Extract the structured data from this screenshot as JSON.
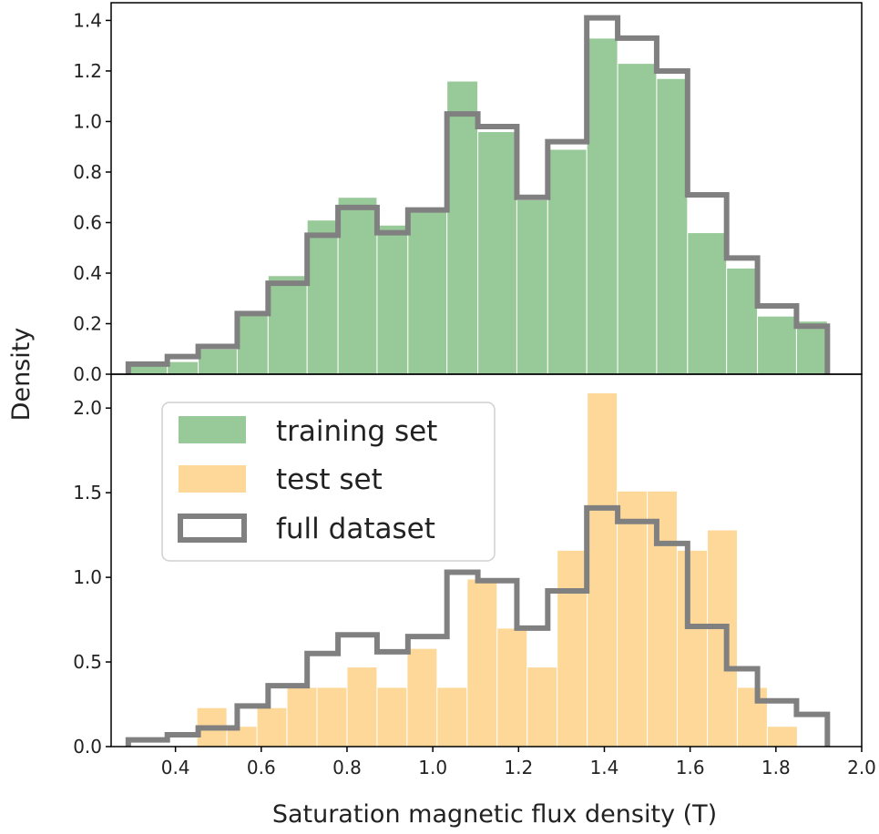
{
  "chart_data": [
    {
      "type": "bar",
      "panel": "top",
      "xlabel": "",
      "ylabel": "Density",
      "xlim": [
        0.25,
        2.0
      ],
      "ylim": [
        0,
        1.47
      ],
      "yticks": [
        0.0,
        0.2,
        0.4,
        0.6,
        0.8,
        1.0,
        1.2,
        1.4
      ],
      "ytick_labels": [
        "0.0",
        "0.2",
        "0.4",
        "0.6",
        "0.8",
        "1.0",
        "1.2",
        "1.4"
      ],
      "bin_edges": [
        0.29,
        0.381,
        0.453,
        0.544,
        0.616,
        0.707,
        0.779,
        0.87,
        0.942,
        1.033,
        1.105,
        1.196,
        1.268,
        1.359,
        1.431,
        1.522,
        1.594,
        1.685,
        1.757,
        1.848,
        1.92
      ],
      "series": [
        {
          "name": "training set",
          "color": "#98c998",
          "values": [
            0.04,
            0.05,
            0.1,
            0.24,
            0.39,
            0.61,
            0.7,
            0.59,
            0.66,
            1.16,
            0.96,
            0.69,
            0.89,
            1.33,
            1.23,
            1.17,
            0.56,
            0.42,
            0.23,
            0.21
          ]
        },
        {
          "name": "full dataset",
          "style": "step",
          "color": "#808080",
          "values": [
            0.04,
            0.07,
            0.11,
            0.24,
            0.36,
            0.55,
            0.66,
            0.56,
            0.65,
            1.03,
            0.98,
            0.7,
            0.92,
            1.41,
            1.33,
            1.2,
            0.71,
            0.46,
            0.27,
            0.19
          ]
        }
      ]
    },
    {
      "type": "bar",
      "panel": "bottom",
      "xlabel": "Saturation magnetic flux density (T)",
      "ylabel": "Density",
      "xlim": [
        0.25,
        2.0
      ],
      "ylim": [
        0,
        2.2
      ],
      "xticks": [
        0.4,
        0.6,
        0.8,
        1.0,
        1.2,
        1.4,
        1.6,
        1.8,
        2.0
      ],
      "xtick_labels": [
        "0.4",
        "0.6",
        "0.8",
        "1.0",
        "1.2",
        "1.4",
        "1.6",
        "1.8",
        "2.0"
      ],
      "yticks": [
        0.0,
        0.5,
        1.0,
        1.5,
        2.0
      ],
      "ytick_labels": [
        "0.0",
        "0.5",
        "1.0",
        "1.5",
        "2.0"
      ],
      "bin_edges": [
        0.29,
        0.381,
        0.453,
        0.544,
        0.616,
        0.707,
        0.779,
        0.87,
        0.942,
        1.033,
        1.105,
        1.196,
        1.268,
        1.359,
        1.431,
        1.522,
        1.594,
        1.685,
        1.757,
        1.848,
        1.92
      ],
      "test_bars": [
        {
          "x0": 0.45,
          "x1": 0.52,
          "value": 0.23
        },
        {
          "x0": 0.52,
          "x1": 0.59,
          "value": 0.12
        },
        {
          "x0": 0.59,
          "x1": 0.66,
          "value": 0.23
        },
        {
          "x0": 0.66,
          "x1": 0.73,
          "value": 0.35
        },
        {
          "x0": 0.73,
          "x1": 0.8,
          "value": 0.35
        },
        {
          "x0": 0.8,
          "x1": 0.87,
          "value": 0.47
        },
        {
          "x0": 0.87,
          "x1": 0.94,
          "value": 0.35
        },
        {
          "x0": 0.94,
          "x1": 1.01,
          "value": 0.58
        },
        {
          "x0": 1.01,
          "x1": 1.08,
          "value": 0.35
        },
        {
          "x0": 1.08,
          "x1": 1.15,
          "value": 0.99
        },
        {
          "x0": 1.15,
          "x1": 1.22,
          "value": 0.7
        },
        {
          "x0": 1.22,
          "x1": 1.29,
          "value": 0.47
        },
        {
          "x0": 1.29,
          "x1": 1.36,
          "value": 1.16
        },
        {
          "x0": 1.36,
          "x1": 1.43,
          "value": 2.09
        },
        {
          "x0": 1.43,
          "x1": 1.5,
          "value": 1.51
        },
        {
          "x0": 1.5,
          "x1": 1.57,
          "value": 1.51
        },
        {
          "x0": 1.57,
          "x1": 1.64,
          "value": 1.16
        },
        {
          "x0": 1.64,
          "x1": 1.71,
          "value": 1.28
        },
        {
          "x0": 1.71,
          "x1": 1.78,
          "value": 0.35
        },
        {
          "x0": 1.78,
          "x1": 1.85,
          "value": 0.12
        }
      ],
      "series": [
        {
          "name": "test set",
          "color": "#fdd898"
        },
        {
          "name": "full dataset",
          "style": "step",
          "color": "#808080",
          "values": [
            0.04,
            0.07,
            0.11,
            0.24,
            0.36,
            0.55,
            0.66,
            0.56,
            0.65,
            1.03,
            0.98,
            0.7,
            0.92,
            1.41,
            1.33,
            1.2,
            0.71,
            0.46,
            0.27,
            0.19
          ]
        }
      ]
    }
  ],
  "legend": {
    "placement": "upper-left",
    "panel": "bottom",
    "items": [
      {
        "label": "training set",
        "color": "#98c998",
        "kind": "patch"
      },
      {
        "label": "test set",
        "color": "#fdd898",
        "kind": "patch"
      },
      {
        "label": "full dataset",
        "color": "#808080",
        "kind": "outline"
      }
    ]
  },
  "shared_ylabel": "Density"
}
